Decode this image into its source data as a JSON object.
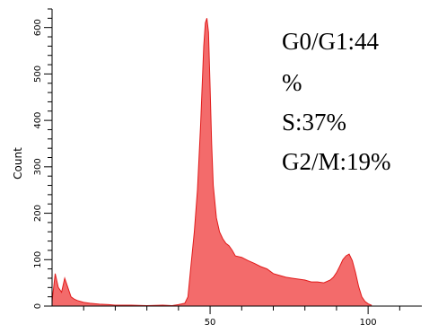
{
  "chart_data": {
    "type": "area",
    "ylabel": "Count",
    "xlabel": "",
    "xlim": [
      0,
      117
    ],
    "ylim": [
      0,
      640
    ],
    "x_ticks": [
      50,
      100
    ],
    "x_minor_ticks": [
      10,
      20,
      30,
      40,
      60,
      70,
      80,
      90,
      110
    ],
    "y_ticks": [
      0,
      100,
      200,
      300,
      400,
      500,
      600
    ],
    "fill_color": "#f36b6b",
    "stroke_color": "#e11b1b",
    "annotations": [
      "G0/G1:44",
      "%",
      "S:37%",
      "G2/M:19%"
    ],
    "series": [
      {
        "x": [
          0,
          1,
          2,
          3,
          4,
          5,
          6,
          7,
          8,
          10,
          12,
          15,
          18,
          20,
          25,
          30,
          35,
          38,
          40,
          42,
          43,
          44,
          45,
          46,
          47,
          48,
          48.5,
          49,
          49.5,
          50,
          50.5,
          51,
          52,
          53,
          54,
          55,
          56,
          57,
          58,
          60,
          62,
          64,
          66,
          68,
          70,
          72,
          74,
          76,
          78,
          80,
          82,
          84,
          86,
          88,
          89,
          90,
          91,
          92,
          93,
          94,
          95,
          96,
          97,
          98,
          99,
          100,
          101
        ],
        "values": [
          10,
          70,
          40,
          30,
          60,
          40,
          20,
          15,
          12,
          8,
          6,
          4,
          3,
          2,
          2,
          1,
          2,
          1,
          3,
          6,
          20,
          90,
          160,
          250,
          390,
          560,
          610,
          620,
          590,
          470,
          350,
          260,
          190,
          160,
          145,
          135,
          130,
          120,
          108,
          105,
          98,
          92,
          85,
          80,
          70,
          66,
          62,
          60,
          58,
          56,
          52,
          52,
          50,
          56,
          62,
          72,
          85,
          100,
          108,
          112,
          98,
          72,
          42,
          20,
          10,
          5,
          2
        ]
      }
    ]
  }
}
